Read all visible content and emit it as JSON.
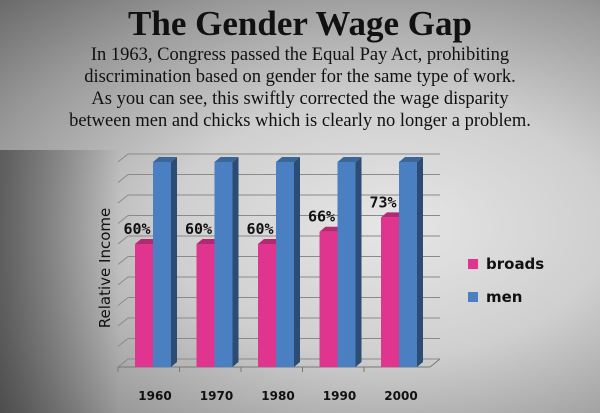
{
  "title": "The Gender Wage Gap",
  "subtitle_lines": [
    "In 1963, Congress passed the Equal Pay Act, prohibiting",
    "discrimination based on gender for the same type of work.",
    "As you can see, this swiftly corrected the wage disparity",
    "between men and chicks which is clearly no longer a problem."
  ],
  "chart_data": {
    "type": "bar",
    "title": "The Gender Wage Gap",
    "xlabel": "",
    "ylabel": "Relative Income",
    "ylim": [
      0,
      100
    ],
    "grid": true,
    "legend_position": "right",
    "categories": [
      "1960",
      "1970",
      "1980",
      "1990",
      "2000"
    ],
    "series": [
      {
        "name": "broads",
        "color": "#e0358f",
        "values": [
          60,
          60,
          60,
          66,
          73
        ],
        "labels": [
          "60%",
          "60%",
          "60%",
          "66%",
          "73%"
        ]
      },
      {
        "name": "men",
        "color": "#4a7fc1",
        "values": [
          100,
          100,
          100,
          100,
          100
        ]
      }
    ]
  }
}
